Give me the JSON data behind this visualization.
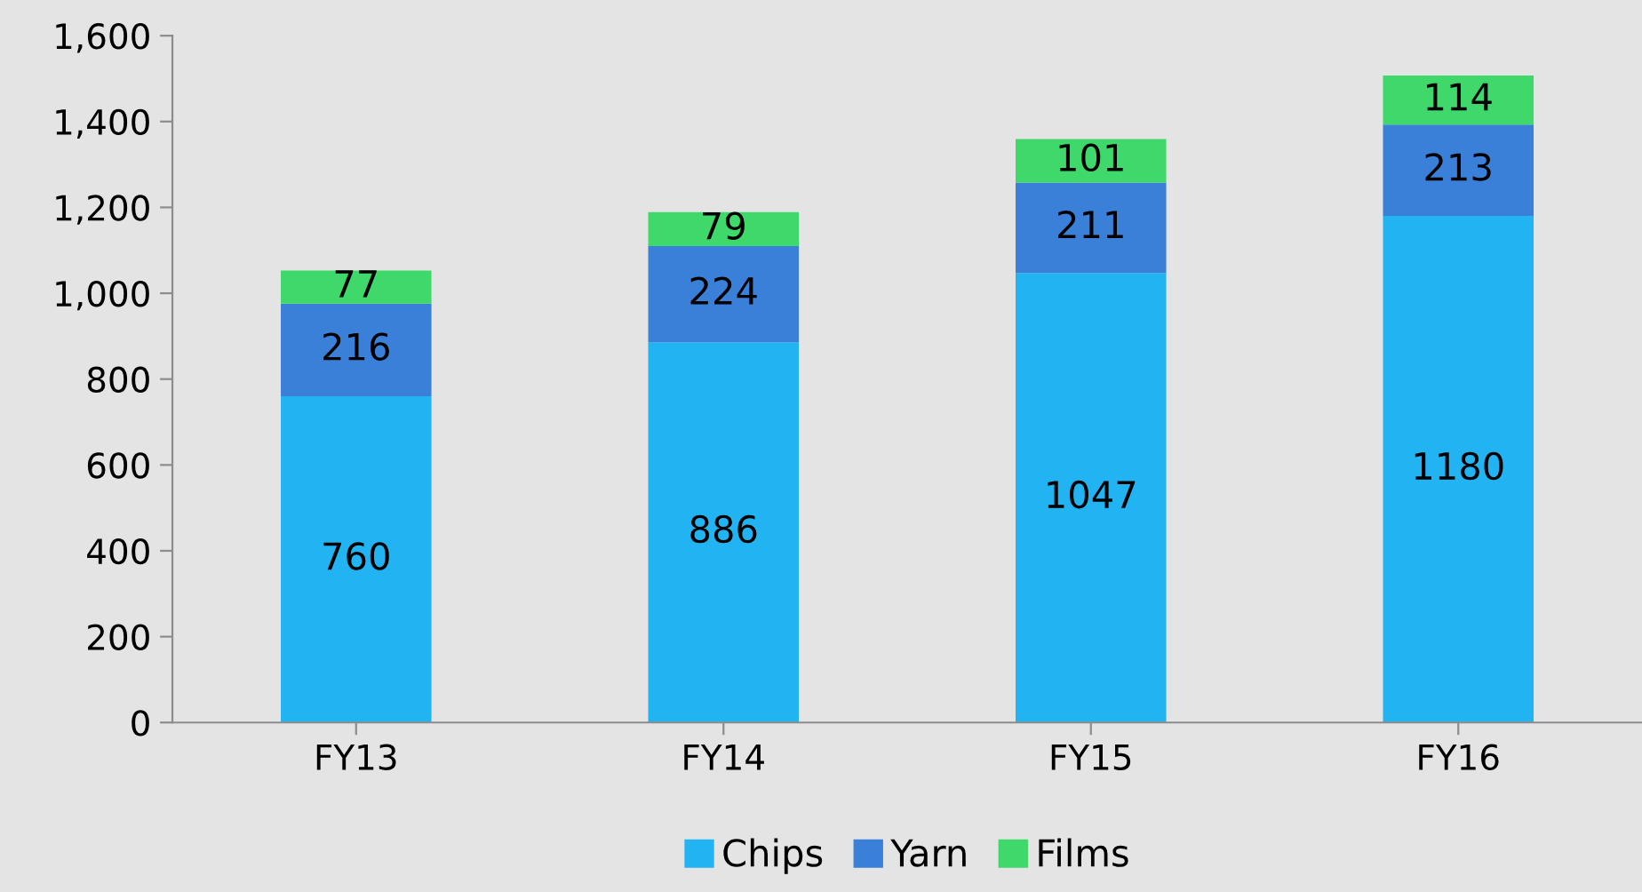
{
  "chart_data": {
    "type": "bar",
    "stacked": true,
    "categories": [
      "FY13",
      "FY14",
      "FY15",
      "FY16"
    ],
    "series": [
      {
        "name": "Chips",
        "color": "#22b4f2",
        "values": [
          760,
          886,
          1047,
          1180
        ]
      },
      {
        "name": "Yarn",
        "color": "#3a80d8",
        "values": [
          216,
          224,
          211,
          213
        ]
      },
      {
        "name": "Films",
        "color": "#3fd96b",
        "values": [
          77,
          79,
          101,
          114
        ]
      }
    ],
    "ylim": [
      0,
      1600
    ],
    "yticks": [
      {
        "value": 0,
        "label": "0"
      },
      {
        "value": 200,
        "label": "200"
      },
      {
        "value": 400,
        "label": "400"
      },
      {
        "value": 600,
        "label": "600"
      },
      {
        "value": 800,
        "label": "800"
      },
      {
        "value": 1000,
        "label": "1,000"
      },
      {
        "value": 1200,
        "label": "1,200"
      },
      {
        "value": 1400,
        "label": "1,400"
      },
      {
        "value": 1600,
        "label": "1,600"
      }
    ],
    "data_labels": true,
    "grid": false,
    "legend": "bottom"
  }
}
